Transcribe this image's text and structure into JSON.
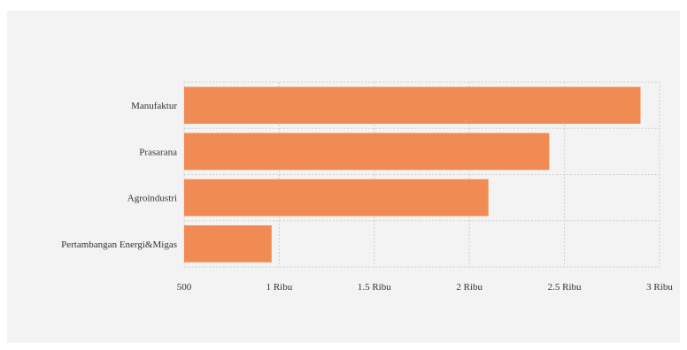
{
  "colors": {
    "bar": "#f08c53",
    "grid": "#cfcfcf",
    "background": "#f3f3f3"
  },
  "chart_data": {
    "type": "bar",
    "orientation": "horizontal",
    "categories": [
      "Manufaktur",
      "Prasarana",
      "Agroindustri",
      "Pertambangan Energi&Migas"
    ],
    "values": [
      2900,
      2420,
      2100,
      960
    ],
    "xlim": [
      500,
      3000
    ],
    "xticks": [
      500,
      1000,
      1500,
      2000,
      2500,
      3000
    ],
    "xtick_labels": [
      "500",
      "1 Ribu",
      "1.5 Ribu",
      "2 Ribu",
      "2.5 Ribu",
      "3 Ribu"
    ],
    "title": "",
    "xlabel": "",
    "ylabel": "",
    "grid": true,
    "legend": "none"
  }
}
